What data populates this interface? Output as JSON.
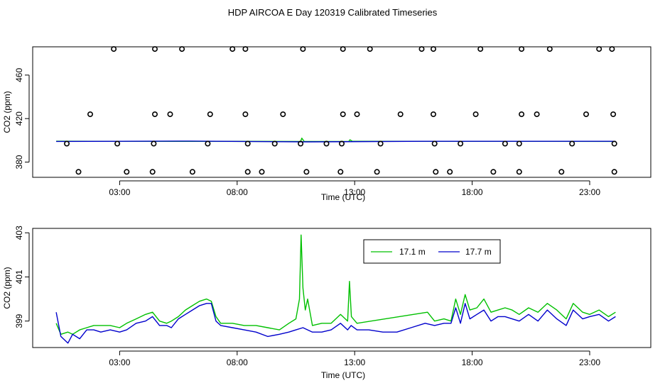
{
  "figure": {
    "title": "HDP AIRCOA E  Day 120319  Calibrated Timeseries"
  },
  "colors": {
    "series_a": "#00c000",
    "series_b": "#0000cc",
    "frame": "#000000",
    "markers": "#000000"
  },
  "chart_data": [
    {
      "type": "scatter",
      "xlabel": "Time (UTC)",
      "ylabel": "CO2 (ppm)",
      "xlim": [
        -0.7,
        25.6
      ],
      "ylim": [
        366,
        486
      ],
      "x_ticks": [
        3,
        8,
        13,
        18,
        23
      ],
      "x_tick_labels": [
        "03:00",
        "08:00",
        "13:00",
        "18:00",
        "23:00"
      ],
      "y_ticks": [
        380,
        420,
        460
      ],
      "y_tick_labels": [
        "380",
        "420",
        "460"
      ],
      "markers": {
        "top": [
          2.75,
          4.5,
          5.65,
          7.8,
          8.35,
          10.8,
          12.5,
          13.65,
          15.85,
          16.35,
          18.35,
          20.1,
          21.3,
          23.4,
          23.95
        ],
        "upper_middle": [
          1.75,
          4.5,
          5.15,
          6.85,
          8.35,
          9.95,
          12.5,
          13.1,
          14.95,
          16.35,
          18.15,
          20.1,
          20.75,
          22.85,
          24.0
        ],
        "lower_middle": [
          0.75,
          2.9,
          4.45,
          6.75,
          8.45,
          9.6,
          10.7,
          11.8,
          12.45,
          14.1,
          16.4,
          17.5,
          19.4,
          20.0,
          22.25,
          24.05
        ],
        "bottom": [
          1.25,
          3.3,
          4.4,
          6.1,
          8.45,
          9.05,
          10.95,
          12.4,
          13.95,
          16.45,
          17.05,
          18.9,
          20.0,
          21.8,
          24.05
        ]
      },
      "marker_levels": {
        "top": 484,
        "upper_middle": 424,
        "lower_middle": 397,
        "bottom": 371
      },
      "series": [
        {
          "line": 399,
          "values": [
            [
              0.3,
              399.2
            ],
            [
              10.7,
              399.0
            ],
            [
              10.75,
              402.0
            ],
            [
              10.85,
              399.0
            ],
            [
              12.75,
              399.0
            ],
            [
              12.8,
              400.5
            ],
            [
              12.9,
              399.1
            ],
            [
              24.1,
              399.0
            ]
          ]
        },
        {
          "line": 399,
          "values": [
            [
              0.3,
              399.0
            ],
            [
              6.0,
              399.3
            ],
            [
              11.0,
              398.6
            ],
            [
              16.0,
              399.1
            ],
            [
              24.1,
              399.1
            ]
          ]
        }
      ]
    },
    {
      "type": "line",
      "xlabel": "Time (UTC)",
      "ylabel": "CO2 (ppm)",
      "xlim": [
        -0.7,
        25.6
      ],
      "ylim": [
        397.8,
        403.2
      ],
      "x_ticks": [
        3,
        8,
        13,
        18,
        23
      ],
      "x_tick_labels": [
        "03:00",
        "08:00",
        "13:00",
        "18:00",
        "23:00"
      ],
      "y_ticks": [
        399,
        401,
        403
      ],
      "y_tick_labels": [
        "399",
        "401",
        "403"
      ],
      "legend": {
        "position": "top-right",
        "entries": [
          "17.1 m",
          "17.7 m"
        ]
      },
      "series": [
        {
          "name": "17.1 m",
          "values": [
            [
              0.3,
              398.9
            ],
            [
              0.5,
              398.4
            ],
            [
              0.8,
              398.5
            ],
            [
              1.0,
              398.4
            ],
            [
              1.3,
              398.6
            ],
            [
              1.6,
              398.7
            ],
            [
              1.9,
              398.8
            ],
            [
              2.2,
              398.8
            ],
            [
              2.6,
              398.8
            ],
            [
              3.0,
              398.7
            ],
            [
              3.3,
              398.9
            ],
            [
              3.7,
              399.1
            ],
            [
              4.1,
              399.3
            ],
            [
              4.4,
              399.4
            ],
            [
              4.7,
              399.0
            ],
            [
              5.0,
              398.9
            ],
            [
              5.2,
              399.0
            ],
            [
              5.5,
              399.2
            ],
            [
              5.8,
              399.5
            ],
            [
              6.1,
              399.7
            ],
            [
              6.4,
              399.9
            ],
            [
              6.7,
              400.0
            ],
            [
              6.9,
              399.9
            ],
            [
              7.1,
              399.2
            ],
            [
              7.3,
              398.9
            ],
            [
              7.8,
              398.9
            ],
            [
              8.3,
              398.8
            ],
            [
              8.8,
              398.8
            ],
            [
              9.3,
              398.7
            ],
            [
              9.8,
              398.6
            ],
            [
              10.2,
              398.9
            ],
            [
              10.5,
              399.1
            ],
            [
              10.65,
              400.0
            ],
            [
              10.72,
              402.9
            ],
            [
              10.8,
              400.5
            ],
            [
              10.9,
              399.5
            ],
            [
              11.0,
              400.0
            ],
            [
              11.2,
              398.8
            ],
            [
              11.6,
              398.9
            ],
            [
              12.0,
              398.9
            ],
            [
              12.4,
              399.3
            ],
            [
              12.7,
              399.0
            ],
            [
              12.78,
              400.8
            ],
            [
              12.86,
              399.2
            ],
            [
              13.1,
              398.9
            ],
            [
              16.1,
              399.4
            ],
            [
              16.4,
              399.0
            ],
            [
              16.8,
              399.1
            ],
            [
              17.1,
              399.0
            ],
            [
              17.3,
              400.0
            ],
            [
              17.5,
              399.3
            ],
            [
              17.7,
              400.2
            ],
            [
              17.9,
              399.5
            ],
            [
              18.2,
              399.6
            ],
            [
              18.5,
              400.0
            ],
            [
              18.8,
              399.4
            ],
            [
              19.1,
              399.5
            ],
            [
              19.4,
              399.6
            ],
            [
              19.7,
              399.5
            ],
            [
              20.0,
              399.3
            ],
            [
              20.4,
              399.6
            ],
            [
              20.8,
              399.4
            ],
            [
              21.2,
              399.8
            ],
            [
              21.6,
              399.5
            ],
            [
              22.0,
              399.1
            ],
            [
              22.3,
              399.8
            ],
            [
              22.7,
              399.4
            ],
            [
              23.0,
              399.3
            ],
            [
              23.4,
              399.5
            ],
            [
              23.8,
              399.2
            ],
            [
              24.1,
              399.4
            ]
          ]
        },
        {
          "name": "17.7 m",
          "values": [
            [
              0.3,
              399.4
            ],
            [
              0.5,
              398.3
            ],
            [
              0.8,
              398.0
            ],
            [
              1.0,
              398.4
            ],
            [
              1.3,
              398.2
            ],
            [
              1.6,
              398.6
            ],
            [
              1.9,
              398.6
            ],
            [
              2.2,
              398.5
            ],
            [
              2.6,
              398.6
            ],
            [
              3.0,
              398.5
            ],
            [
              3.3,
              398.6
            ],
            [
              3.7,
              398.9
            ],
            [
              4.1,
              399.0
            ],
            [
              4.4,
              399.2
            ],
            [
              4.7,
              398.8
            ],
            [
              5.0,
              398.8
            ],
            [
              5.2,
              398.7
            ],
            [
              5.5,
              399.1
            ],
            [
              5.8,
              399.3
            ],
            [
              6.1,
              399.5
            ],
            [
              6.4,
              399.7
            ],
            [
              6.7,
              399.8
            ],
            [
              6.9,
              399.8
            ],
            [
              7.1,
              399.0
            ],
            [
              7.3,
              398.8
            ],
            [
              7.8,
              398.7
            ],
            [
              8.3,
              398.6
            ],
            [
              8.8,
              398.5
            ],
            [
              9.3,
              398.3
            ],
            [
              9.8,
              398.4
            ],
            [
              10.2,
              398.5
            ],
            [
              10.5,
              398.6
            ],
            [
              10.8,
              398.7
            ],
            [
              11.2,
              398.5
            ],
            [
              11.6,
              398.5
            ],
            [
              12.0,
              398.6
            ],
            [
              12.4,
              398.9
            ],
            [
              12.7,
              398.6
            ],
            [
              12.85,
              398.8
            ],
            [
              13.1,
              398.6
            ],
            [
              13.6,
              398.6
            ],
            [
              14.2,
              398.5
            ],
            [
              14.8,
              398.5
            ],
            [
              15.4,
              398.7
            ],
            [
              16.0,
              398.9
            ],
            [
              16.4,
              398.8
            ],
            [
              16.8,
              398.9
            ],
            [
              17.1,
              398.9
            ],
            [
              17.3,
              399.6
            ],
            [
              17.5,
              398.9
            ],
            [
              17.7,
              399.8
            ],
            [
              17.9,
              399.1
            ],
            [
              18.2,
              399.3
            ],
            [
              18.5,
              399.5
            ],
            [
              18.8,
              399.0
            ],
            [
              19.1,
              399.2
            ],
            [
              19.4,
              399.2
            ],
            [
              19.7,
              399.1
            ],
            [
              20.0,
              399.0
            ],
            [
              20.4,
              399.3
            ],
            [
              20.8,
              399.0
            ],
            [
              21.2,
              399.5
            ],
            [
              21.6,
              399.1
            ],
            [
              22.0,
              398.8
            ],
            [
              22.3,
              399.5
            ],
            [
              22.7,
              399.1
            ],
            [
              23.0,
              399.2
            ],
            [
              23.4,
              399.3
            ],
            [
              23.8,
              399.0
            ],
            [
              24.1,
              399.2
            ]
          ]
        }
      ]
    }
  ]
}
